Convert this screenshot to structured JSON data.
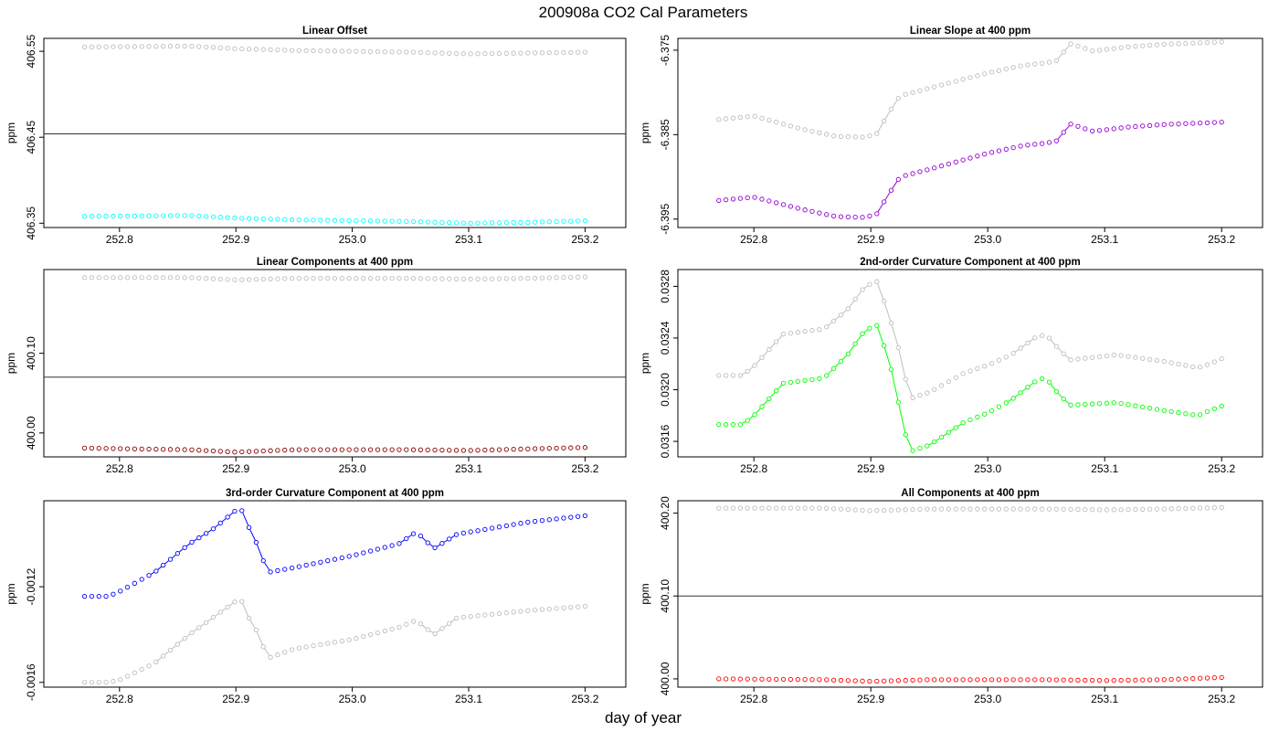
{
  "figure": {
    "title": "200908a   CO2 Cal Parameters",
    "xlabel": "day of year"
  },
  "colors": {
    "reference": "#bebebe",
    "hline": "#333333"
  },
  "chart_data": [
    {
      "type": "scatter",
      "title": "Linear Offset",
      "ylabel": "ppm",
      "xlim": [
        252.77,
        253.2
      ],
      "ylim": [
        406.345,
        406.565
      ],
      "xticks": [
        252.8,
        252.9,
        253.0,
        253.1,
        253.2
      ],
      "xtick_labels": [
        "252.8",
        "252.9",
        "253.0",
        "253.1",
        "253.2"
      ],
      "yticks": [
        406.35,
        406.45,
        406.55
      ],
      "ytick_labels": [
        "406.35",
        "406.45",
        "406.55"
      ],
      "hline": 406.454,
      "series": [
        {
          "color": "#bebebe",
          "connect": false,
          "line": false,
          "keys": [
            [
              252.77,
              406.555
            ],
            [
              252.86,
              406.556
            ],
            [
              252.9,
              406.553
            ],
            [
              252.95,
              406.551
            ],
            [
              253.0,
              406.55
            ],
            [
              253.05,
              406.549
            ],
            [
              253.1,
              406.547
            ],
            [
              253.15,
              406.548
            ],
            [
              253.205,
              406.549
            ]
          ]
        },
        {
          "color": "#00ffff",
          "connect": false,
          "line": false,
          "keys": [
            [
              252.77,
              406.358
            ],
            [
              252.86,
              406.359
            ],
            [
              252.9,
              406.356
            ],
            [
              252.95,
              406.354
            ],
            [
              253.0,
              406.353
            ],
            [
              253.05,
              406.352
            ],
            [
              253.1,
              406.35
            ],
            [
              253.15,
              406.351
            ],
            [
              253.205,
              406.353
            ]
          ]
        }
      ]
    },
    {
      "type": "scatter",
      "title": "Linear Slope at 400 ppm",
      "ylabel": "ppm",
      "xlim": [
        252.77,
        253.2
      ],
      "ylim": [
        -6.396,
        -6.3736
      ],
      "xticks": [
        252.8,
        252.9,
        253.0,
        253.1,
        253.2
      ],
      "xtick_labels": [
        "252.8",
        "252.9",
        "253.0",
        "253.1",
        "253.2"
      ],
      "yticks": [
        -6.395,
        -6.385,
        -6.375
      ],
      "ytick_labels": [
        "-6.395",
        "-6.385",
        "-6.375"
      ],
      "series": [
        {
          "color": "#bebebe",
          "connect": true,
          "line": false,
          "keys": [
            [
              252.77,
              -6.3832
            ],
            [
              252.8,
              -6.3828
            ],
            [
              252.84,
              -6.3843
            ],
            [
              252.87,
              -6.3852
            ],
            [
              252.895,
              -6.3853
            ],
            [
              252.905,
              -6.3849
            ],
            [
              252.915,
              -6.3825
            ],
            [
              252.925,
              -6.3804
            ],
            [
              252.95,
              -6.3795
            ],
            [
              253.0,
              -6.3777
            ],
            [
              253.03,
              -6.3768
            ],
            [
              253.05,
              -6.3765
            ],
            [
              253.06,
              -6.3762
            ],
            [
              253.07,
              -6.3742
            ],
            [
              253.09,
              -6.3751
            ],
            [
              253.12,
              -6.3746
            ],
            [
              253.15,
              -6.3743
            ],
            [
              253.205,
              -6.374
            ]
          ]
        },
        {
          "color": "#9400d3",
          "connect": true,
          "line": true,
          "keys": [
            [
              252.77,
              -6.3928
            ],
            [
              252.8,
              -6.3924
            ],
            [
              252.84,
              -6.3938
            ],
            [
              252.87,
              -6.3947
            ],
            [
              252.895,
              -6.3948
            ],
            [
              252.905,
              -6.3944
            ],
            [
              252.915,
              -6.3921
            ],
            [
              252.925,
              -6.39
            ],
            [
              252.95,
              -6.3891
            ],
            [
              253.0,
              -6.3872
            ],
            [
              253.03,
              -6.3863
            ],
            [
              253.05,
              -6.386
            ],
            [
              253.06,
              -6.3857
            ],
            [
              253.07,
              -6.3837
            ],
            [
              253.09,
              -6.3846
            ],
            [
              253.12,
              -6.3841
            ],
            [
              253.15,
              -6.3838
            ],
            [
              253.205,
              -6.3835
            ]
          ]
        }
      ]
    },
    {
      "type": "scatter",
      "title": "Linear Components at 400 ppm",
      "ylabel": "ppm",
      "xlim": [
        252.77,
        253.2
      ],
      "ylim": [
        399.97,
        400.205
      ],
      "xticks": [
        252.8,
        252.9,
        253.0,
        253.1,
        253.2
      ],
      "xtick_labels": [
        "252.8",
        "252.9",
        "253.0",
        "253.1",
        "253.2"
      ],
      "yticks": [
        400.0,
        400.1
      ],
      "ytick_labels": [
        "400.00",
        "400.10"
      ],
      "hline": 400.07,
      "series": [
        {
          "color": "#bebebe",
          "connect": false,
          "line": false,
          "keys": [
            [
              252.77,
              400.195
            ],
            [
              252.86,
              400.195
            ],
            [
              252.9,
              400.192
            ],
            [
              252.95,
              400.194
            ],
            [
              253.0,
              400.194
            ],
            [
              253.05,
              400.194
            ],
            [
              253.1,
              400.193
            ],
            [
              253.15,
              400.194
            ],
            [
              253.205,
              400.196
            ]
          ]
        },
        {
          "color": "#8b0000",
          "connect": false,
          "line": false,
          "keys": [
            [
              252.77,
              399.981
            ],
            [
              252.86,
              399.979
            ],
            [
              252.9,
              399.976
            ],
            [
              252.95,
              399.979
            ],
            [
              253.0,
              399.979
            ],
            [
              253.05,
              399.979
            ],
            [
              253.1,
              399.978
            ],
            [
              253.15,
              399.98
            ],
            [
              253.205,
              399.982
            ]
          ]
        }
      ]
    },
    {
      "type": "scatter",
      "title": "2nd-order Curvature Component at 400 ppm",
      "ylabel": "ppm",
      "xlim": [
        252.77,
        253.2
      ],
      "ylim": [
        0.03148,
        0.03293
      ],
      "xticks": [
        252.8,
        252.9,
        253.0,
        253.1,
        253.2
      ],
      "xtick_labels": [
        "252.8",
        "252.9",
        "253.0",
        "253.1",
        "253.2"
      ],
      "yticks": [
        0.0316,
        0.032,
        0.0324,
        0.0328
      ],
      "ytick_labels": [
        "0.0316",
        "0.0320",
        "0.0324",
        "0.0328"
      ],
      "series": [
        {
          "color": "#bebebe",
          "connect": true,
          "line": false,
          "keys": [
            [
              252.77,
              0.03211
            ],
            [
              252.79,
              0.03211
            ],
            [
              252.8,
              0.03218
            ],
            [
              252.825,
              0.03243
            ],
            [
              252.86,
              0.03247
            ],
            [
              252.88,
              0.03262
            ],
            [
              252.895,
              0.0328
            ],
            [
              252.905,
              0.03284
            ],
            [
              252.91,
              0.03272
            ],
            [
              252.918,
              0.0325
            ],
            [
              252.926,
              0.03225
            ],
            [
              252.933,
              0.03193
            ],
            [
              252.95,
              0.03198
            ],
            [
              252.98,
              0.03213
            ],
            [
              253.0,
              0.03219
            ],
            [
              253.02,
              0.03227
            ],
            [
              253.04,
              0.0324
            ],
            [
              253.05,
              0.03243
            ],
            [
              253.055,
              0.03237
            ],
            [
              253.07,
              0.03223
            ],
            [
              253.11,
              0.03227
            ],
            [
              253.15,
              0.03222
            ],
            [
              253.18,
              0.03217
            ],
            [
              253.19,
              0.0322
            ],
            [
              253.205,
              0.03226
            ]
          ]
        },
        {
          "color": "#00ff00",
          "connect": true,
          "line": true,
          "keys": [
            [
              252.77,
              0.03173
            ],
            [
              252.79,
              0.03173
            ],
            [
              252.8,
              0.0318
            ],
            [
              252.825,
              0.03205
            ],
            [
              252.86,
              0.03209
            ],
            [
              252.88,
              0.03227
            ],
            [
              252.895,
              0.03246
            ],
            [
              252.905,
              0.0325
            ],
            [
              252.91,
              0.03238
            ],
            [
              252.918,
              0.03214
            ],
            [
              252.926,
              0.0318
            ],
            [
              252.933,
              0.03152
            ],
            [
              252.95,
              0.03157
            ],
            [
              252.98,
              0.03175
            ],
            [
              253.0,
              0.03182
            ],
            [
              253.02,
              0.03192
            ],
            [
              253.04,
              0.03206
            ],
            [
              253.05,
              0.0321
            ],
            [
              253.055,
              0.03202
            ],
            [
              253.07,
              0.03188
            ],
            [
              253.11,
              0.0319
            ],
            [
              253.15,
              0.03184
            ],
            [
              253.18,
              0.0318
            ],
            [
              253.19,
              0.03184
            ],
            [
              253.205,
              0.03189
            ]
          ]
        }
      ]
    },
    {
      "type": "scatter",
      "title": "3rd-order Curvature Component at 400 ppm",
      "ylabel": "ppm",
      "xlim": [
        252.77,
        253.2
      ],
      "ylim": [
        -0.00162,
        -0.00084
      ],
      "xticks": [
        252.8,
        252.9,
        253.0,
        253.1,
        253.2
      ],
      "xtick_labels": [
        "252.8",
        "252.9",
        "253.0",
        "253.1",
        "253.2"
      ],
      "yticks": [
        -0.0016,
        -0.0012
      ],
      "ytick_labels": [
        "-0.0016",
        "-0.0012"
      ],
      "series": [
        {
          "color": "#bebebe",
          "connect": true,
          "line": false,
          "keys": [
            [
              252.77,
              -0.0016
            ],
            [
              252.79,
              -0.0016
            ],
            [
              252.8,
              -0.00159
            ],
            [
              252.83,
              -0.00152
            ],
            [
              252.86,
              -0.0014
            ],
            [
              252.88,
              -0.00133
            ],
            [
              252.9,
              -0.00126
            ],
            [
              252.905,
              -0.00126
            ],
            [
              252.912,
              -0.00134
            ],
            [
              252.92,
              -0.0014
            ],
            [
              252.927,
              -0.0015
            ],
            [
              252.95,
              -0.00146
            ],
            [
              253.0,
              -0.00142
            ],
            [
              253.04,
              -0.00137
            ],
            [
              253.055,
              -0.00134
            ],
            [
              253.07,
              -0.0014
            ],
            [
              253.09,
              -0.00133
            ],
            [
              253.15,
              -0.0013
            ],
            [
              253.205,
              -0.00128
            ]
          ]
        },
        {
          "color": "#0000ff",
          "connect": true,
          "line": true,
          "keys": [
            [
              252.77,
              -0.00124
            ],
            [
              252.79,
              -0.00124
            ],
            [
              252.8,
              -0.00122
            ],
            [
              252.83,
              -0.00114
            ],
            [
              252.86,
              -0.00102
            ],
            [
              252.88,
              -0.00096
            ],
            [
              252.9,
              -0.00088
            ],
            [
              252.905,
              -0.00088
            ],
            [
              252.912,
              -0.00096
            ],
            [
              252.92,
              -0.00104
            ],
            [
              252.927,
              -0.00114
            ],
            [
              252.95,
              -0.00112
            ],
            [
              253.0,
              -0.00107
            ],
            [
              253.04,
              -0.00102
            ],
            [
              253.055,
              -0.00097
            ],
            [
              253.07,
              -0.00104
            ],
            [
              253.09,
              -0.00098
            ],
            [
              253.15,
              -0.00093
            ],
            [
              253.205,
              -0.0009
            ]
          ]
        }
      ]
    },
    {
      "type": "scatter",
      "title": "All Components at 400 ppm",
      "ylabel": "ppm",
      "xlim": [
        252.77,
        253.2
      ],
      "ylim": [
        399.99,
        400.215
      ],
      "xticks": [
        252.8,
        252.9,
        253.0,
        253.1,
        253.2
      ],
      "xtick_labels": [
        "252.8",
        "252.9",
        "253.0",
        "253.1",
        "253.2"
      ],
      "yticks": [
        400.0,
        400.1,
        400.2
      ],
      "ytick_labels": [
        "400.00",
        "400.10",
        "400.20"
      ],
      "hline": 400.1,
      "series": [
        {
          "color": "#bebebe",
          "connect": false,
          "line": false,
          "keys": [
            [
              252.77,
              400.206
            ],
            [
              252.86,
              400.206
            ],
            [
              252.9,
              400.203
            ],
            [
              252.95,
              400.205
            ],
            [
              253.0,
              400.205
            ],
            [
              253.05,
              400.205
            ],
            [
              253.1,
              400.204
            ],
            [
              253.15,
              400.205
            ],
            [
              253.205,
              400.207
            ]
          ]
        },
        {
          "color": "#ff0000",
          "connect": false,
          "line": false,
          "keys": [
            [
              252.77,
              400.0
            ],
            [
              252.86,
              399.999
            ],
            [
              252.9,
              399.997
            ],
            [
              252.95,
              399.999
            ],
            [
              253.0,
              399.999
            ],
            [
              253.05,
              399.999
            ],
            [
              253.1,
              399.998
            ],
            [
              253.15,
              399.999
            ],
            [
              253.205,
              400.002
            ]
          ]
        }
      ]
    }
  ]
}
